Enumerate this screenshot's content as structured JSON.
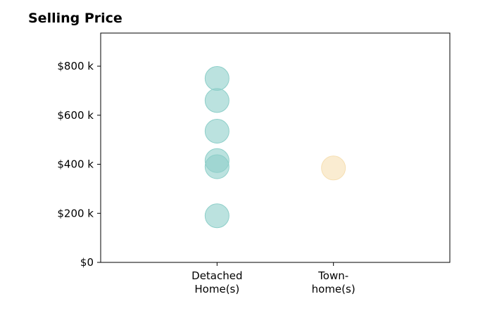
{
  "chart_data": {
    "type": "scatter",
    "title": "Selling Price",
    "categories": [
      "Detached\nHome(s)",
      "Town-\nhome(s)"
    ],
    "series": [
      {
        "category": "Detached\nHome(s)",
        "values": [
          750000,
          660000,
          535000,
          415000,
          390000,
          190000
        ],
        "color": "#8ecfc9"
      },
      {
        "category": "Town-\nhome(s)",
        "values": [
          385000
        ],
        "color": "#f6dfb3"
      }
    ],
    "yticks": [
      {
        "value": 0,
        "label": "$0"
      },
      {
        "value": 200000,
        "label": "$200 k"
      },
      {
        "value": 400000,
        "label": "$400 k"
      },
      {
        "value": 600000,
        "label": "$600 k"
      },
      {
        "value": 800000,
        "label": "$800 k"
      }
    ],
    "ylim": [
      0,
      935000
    ],
    "grid": false,
    "legend": "none"
  }
}
